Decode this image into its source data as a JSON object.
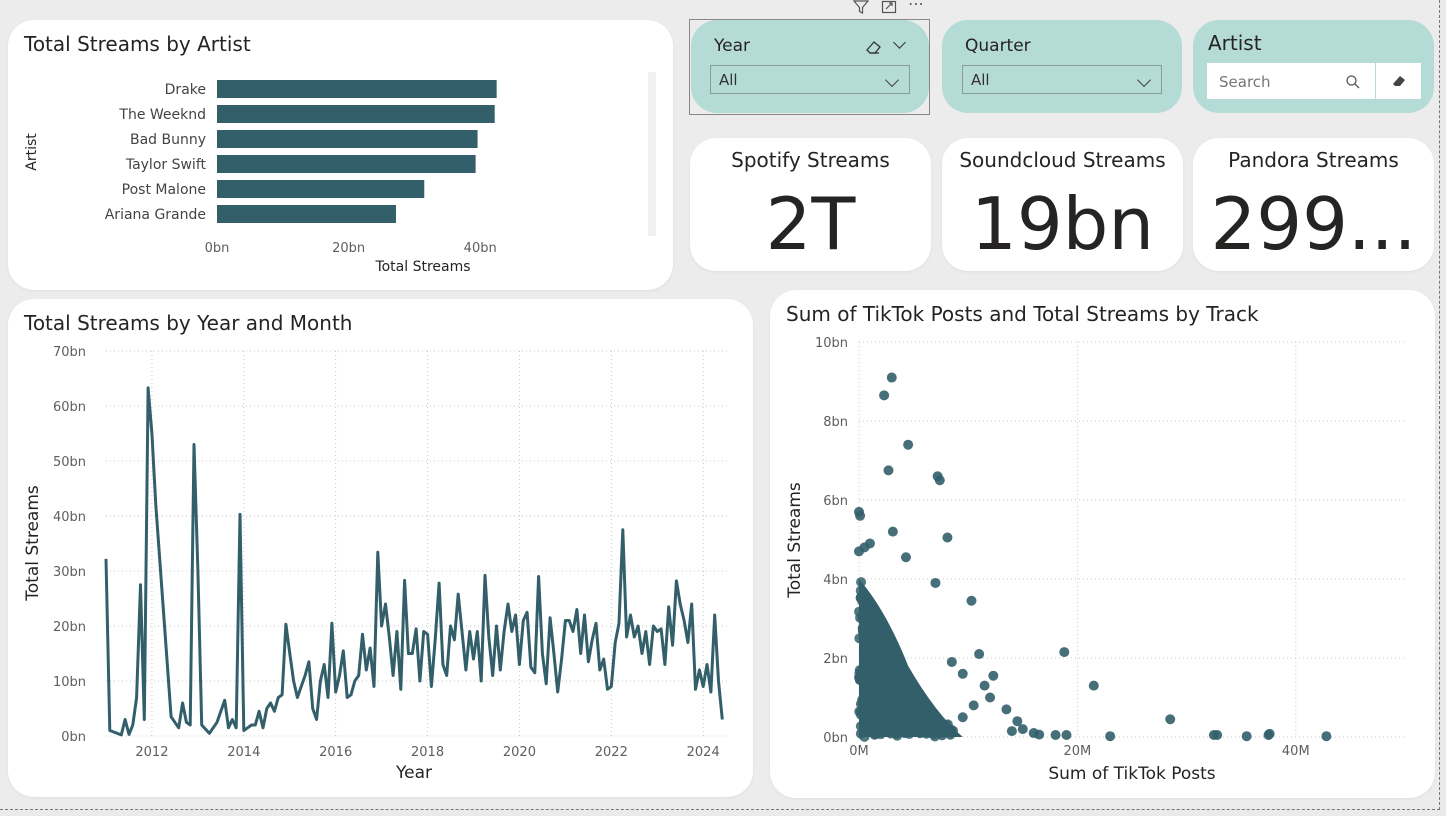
{
  "colors": {
    "accent": "#325f6a",
    "slicer_bg": "#b5dbd6",
    "card_bg": "#ffffff",
    "canvas": "#ececec"
  },
  "toolbar": {
    "icons": [
      "filter-icon",
      "focus-mode-icon",
      "more-options-icon"
    ],
    "more_glyph": "⋯"
  },
  "slicers": {
    "year": {
      "title": "Year",
      "value": "All"
    },
    "quarter": {
      "title": "Quarter",
      "value": "All"
    },
    "artist": {
      "title": "Artist",
      "search_placeholder": "Search"
    }
  },
  "kpis": [
    {
      "title": "Spotify Streams",
      "value": "2T"
    },
    {
      "title": "Soundcloud Streams",
      "value": "19bn"
    },
    {
      "title": "Pandora Streams",
      "value": "299..."
    }
  ],
  "bar_chart": {
    "title": "Total Streams by Artist",
    "chart_data": {
      "type": "bar",
      "orientation": "horizontal",
      "categories": [
        "Drake",
        "The Weeknd",
        "Bad Bunny",
        "Taylor Swift",
        "Post Malone",
        "Ariana Grande"
      ],
      "values": [
        42.5,
        42.2,
        39.6,
        39.3,
        31.5,
        27.2
      ],
      "unit": "bn",
      "xlabel": "Total Streams",
      "ylabel": "Artist",
      "xlim": [
        0,
        50
      ],
      "xticks": [
        "0bn",
        "20bn",
        "40bn"
      ]
    }
  },
  "line_chart": {
    "title": "Total Streams by Year and Month",
    "chart_data": {
      "type": "line",
      "xlabel": "Year",
      "ylabel": "Total Streams",
      "xlim": [
        "2011-01",
        "2024-08"
      ],
      "ylim": [
        0,
        70
      ],
      "unit": "bn",
      "xticks": [
        "2012",
        "2014",
        "2016",
        "2018",
        "2020",
        "2022",
        "2024"
      ],
      "yticks": [
        "0bn",
        "10bn",
        "20bn",
        "30bn",
        "40bn",
        "50bn",
        "60bn",
        "70bn"
      ],
      "grid": true,
      "points": [
        [
          "2011-01",
          32.2
        ],
        [
          "2011-02",
          1
        ],
        [
          "2011-05",
          0.2
        ],
        [
          "2011-06",
          3
        ],
        [
          "2011-07",
          0.3
        ],
        [
          "2011-08",
          2
        ],
        [
          "2011-09",
          7
        ],
        [
          "2011-10",
          27.5
        ],
        [
          "2011-11",
          3
        ],
        [
          "2011-12",
          63.3
        ],
        [
          "2012-01",
          55
        ],
        [
          "2012-02",
          42
        ],
        [
          "2012-06",
          3.5
        ],
        [
          "2012-08",
          1.5
        ],
        [
          "2012-09",
          6
        ],
        [
          "2012-10",
          2.5
        ],
        [
          "2012-11",
          2
        ],
        [
          "2012-12",
          53
        ],
        [
          "2013-01",
          30
        ],
        [
          "2013-02",
          2
        ],
        [
          "2013-04",
          0.5
        ],
        [
          "2013-06",
          2.5
        ],
        [
          "2013-08",
          6.5
        ],
        [
          "2013-09",
          1.5
        ],
        [
          "2013-10",
          3
        ],
        [
          "2013-11",
          1.5
        ],
        [
          "2013-12",
          40.3
        ],
        [
          "2014-01",
          1
        ],
        [
          "2014-02",
          1.5
        ],
        [
          "2014-03",
          2
        ],
        [
          "2014-04",
          2
        ],
        [
          "2014-05",
          4.5
        ],
        [
          "2014-06",
          1.5
        ],
        [
          "2014-07",
          5
        ],
        [
          "2014-08",
          6
        ],
        [
          "2014-09",
          4.5
        ],
        [
          "2014-10",
          7
        ],
        [
          "2014-11",
          7.5
        ],
        [
          "2014-12",
          20.3
        ],
        [
          "2015-01",
          15
        ],
        [
          "2015-02",
          10
        ],
        [
          "2015-03",
          7
        ],
        [
          "2015-04",
          9
        ],
        [
          "2015-05",
          11
        ],
        [
          "2015-06",
          13.5
        ],
        [
          "2015-07",
          5
        ],
        [
          "2015-08",
          3
        ],
        [
          "2015-09",
          10
        ],
        [
          "2015-10",
          13
        ],
        [
          "2015-11",
          7
        ],
        [
          "2015-12",
          20.5
        ],
        [
          "2016-01",
          8
        ],
        [
          "2016-02",
          11
        ],
        [
          "2016-03",
          15.5
        ],
        [
          "2016-04",
          7
        ],
        [
          "2016-05",
          7.5
        ],
        [
          "2016-06",
          10
        ],
        [
          "2016-07",
          11
        ],
        [
          "2016-08",
          18.5
        ],
        [
          "2016-09",
          12
        ],
        [
          "2016-10",
          16
        ],
        [
          "2016-11",
          9
        ],
        [
          "2016-12",
          33.4
        ],
        [
          "2017-01",
          20
        ],
        [
          "2017-02",
          24
        ],
        [
          "2017-03",
          18
        ],
        [
          "2017-04",
          11
        ],
        [
          "2017-05",
          19
        ],
        [
          "2017-06",
          8.5
        ],
        [
          "2017-07",
          28.3
        ],
        [
          "2017-08",
          15
        ],
        [
          "2017-09",
          15
        ],
        [
          "2017-10",
          19.5
        ],
        [
          "2017-11",
          10
        ],
        [
          "2017-12",
          19
        ],
        [
          "2018-01",
          18.5
        ],
        [
          "2018-02",
          9
        ],
        [
          "2018-03",
          17.5
        ],
        [
          "2018-04",
          27.8
        ],
        [
          "2018-05",
          13
        ],
        [
          "2018-06",
          11
        ],
        [
          "2018-07",
          20
        ],
        [
          "2018-08",
          17.5
        ],
        [
          "2018-09",
          25.8
        ],
        [
          "2018-10",
          19
        ],
        [
          "2018-11",
          12
        ],
        [
          "2018-12",
          19
        ],
        [
          "2019-01",
          14
        ],
        [
          "2019-02",
          19
        ],
        [
          "2019-03",
          10
        ],
        [
          "2019-04",
          29.2
        ],
        [
          "2019-05",
          18
        ],
        [
          "2019-06",
          11
        ],
        [
          "2019-07",
          20
        ],
        [
          "2019-08",
          12
        ],
        [
          "2019-09",
          19
        ],
        [
          "2019-10",
          24
        ],
        [
          "2019-11",
          19
        ],
        [
          "2019-12",
          22
        ],
        [
          "2020-01",
          13
        ],
        [
          "2020-02",
          21
        ],
        [
          "2020-03",
          22.5
        ],
        [
          "2020-04",
          12.5
        ],
        [
          "2020-05",
          11.5
        ],
        [
          "2020-06",
          29
        ],
        [
          "2020-07",
          15
        ],
        [
          "2020-08",
          9.5
        ],
        [
          "2020-09",
          21.5
        ],
        [
          "2020-10",
          15
        ],
        [
          "2020-11",
          8
        ],
        [
          "2020-12",
          14
        ],
        [
          "2021-01",
          21
        ],
        [
          "2021-02",
          21
        ],
        [
          "2021-03",
          19
        ],
        [
          "2021-04",
          23
        ],
        [
          "2021-05",
          15
        ],
        [
          "2021-06",
          22
        ],
        [
          "2021-07",
          13.5
        ],
        [
          "2021-08",
          17.5
        ],
        [
          "2021-09",
          20.5
        ],
        [
          "2021-10",
          12
        ],
        [
          "2021-11",
          14
        ],
        [
          "2021-12",
          8.5
        ],
        [
          "2022-01",
          9
        ],
        [
          "2022-02",
          17
        ],
        [
          "2022-03",
          20.5
        ],
        [
          "2022-04",
          37.5
        ],
        [
          "2022-05",
          18
        ],
        [
          "2022-06",
          22
        ],
        [
          "2022-07",
          18
        ],
        [
          "2022-08",
          20
        ],
        [
          "2022-09",
          15
        ],
        [
          "2022-10",
          19
        ],
        [
          "2022-11",
          13
        ],
        [
          "2022-12",
          20
        ],
        [
          "2023-01",
          19
        ],
        [
          "2023-02",
          19.5
        ],
        [
          "2023-03",
          13
        ],
        [
          "2023-04",
          23.5
        ],
        [
          "2023-05",
          16.5
        ],
        [
          "2023-06",
          28.2
        ],
        [
          "2023-07",
          24
        ],
        [
          "2023-08",
          21
        ],
        [
          "2023-09",
          17
        ],
        [
          "2023-10",
          24
        ],
        [
          "2023-11",
          8.5
        ],
        [
          "2023-12",
          12
        ],
        [
          "2024-01",
          9
        ],
        [
          "2024-02",
          13
        ],
        [
          "2024-03",
          8
        ],
        [
          "2024-04",
          22
        ],
        [
          "2024-05",
          10
        ],
        [
          "2024-06",
          3
        ]
      ]
    }
  },
  "scatter_chart": {
    "title": "Sum of TikTok Posts and Total Streams by Track",
    "chart_data": {
      "type": "scatter",
      "xlabel": "Sum of TikTok Posts",
      "ylabel": "Total Streams",
      "xlim": [
        0,
        50
      ],
      "x_unit": "M",
      "ylim": [
        0,
        10
      ],
      "y_unit": "bn",
      "xticks": [
        "0M",
        "20M",
        "40M"
      ],
      "yticks": [
        "0bn",
        "2bn",
        "4bn",
        "6bn",
        "8bn",
        "10bn"
      ],
      "grid": true,
      "points": [
        [
          3.0,
          9.1
        ],
        [
          2.3,
          8.65
        ],
        [
          4.5,
          7.4
        ],
        [
          7.2,
          6.6
        ],
        [
          7.4,
          6.5
        ],
        [
          2.7,
          6.75
        ],
        [
          0.0,
          5.7
        ],
        [
          0.1,
          5.6
        ],
        [
          3.1,
          5.2
        ],
        [
          8.1,
          5.05
        ],
        [
          0,
          4.7
        ],
        [
          1.0,
          4.9
        ],
        [
          4.3,
          4.55
        ],
        [
          10.3,
          3.45
        ],
        [
          7.0,
          3.9
        ],
        [
          0.5,
          4.8
        ],
        [
          18.8,
          2.15
        ],
        [
          21.5,
          1.3
        ],
        [
          28.5,
          0.45
        ],
        [
          32.5,
          0.05
        ],
        [
          32.8,
          0.05
        ],
        [
          35.5,
          0.02
        ],
        [
          37.5,
          0.05
        ],
        [
          37.6,
          0.08
        ],
        [
          42.8,
          0.02
        ],
        [
          23.0,
          0.02
        ],
        [
          18.0,
          0.05
        ],
        [
          16.5,
          0.06
        ],
        [
          19.0,
          0.05
        ],
        [
          11.0,
          2.1
        ],
        [
          12.3,
          1.55
        ],
        [
          11.5,
          1.3
        ],
        [
          12.0,
          1.0
        ],
        [
          13.5,
          0.7
        ],
        [
          14.5,
          0.4
        ],
        [
          15.0,
          0.2
        ],
        [
          16.0,
          0.1
        ],
        [
          14.0,
          0.15
        ],
        [
          10.5,
          0.8
        ],
        [
          9.5,
          1.6
        ],
        [
          8.5,
          1.9
        ],
        [
          9.5,
          0.5
        ]
      ]
    }
  }
}
